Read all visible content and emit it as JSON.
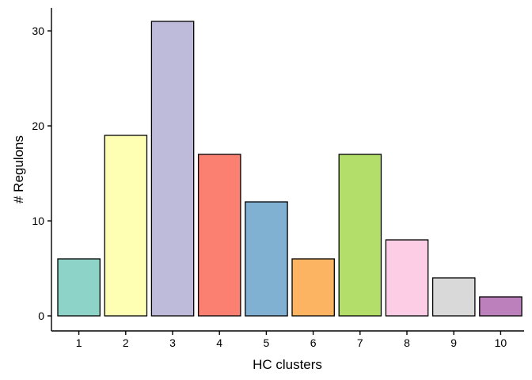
{
  "chart_data": {
    "type": "bar",
    "categories": [
      "1",
      "2",
      "3",
      "4",
      "5",
      "6",
      "7",
      "8",
      "9",
      "10"
    ],
    "values": [
      6,
      19,
      31,
      17,
      12,
      6,
      17,
      8,
      4,
      2
    ],
    "colors": [
      "#8DD3C7",
      "#FFFFB3",
      "#BEBADA",
      "#FB8072",
      "#80B1D3",
      "#FDB462",
      "#B3DE69",
      "#FCCDE5",
      "#D9D9D9",
      "#BC80BD"
    ],
    "title": "",
    "xlabel": "HC clusters",
    "ylabel": "# Regulons",
    "yticks": [
      0,
      10,
      20,
      30
    ],
    "ylim": [
      0,
      31
    ],
    "grid": false,
    "legend": "none"
  }
}
